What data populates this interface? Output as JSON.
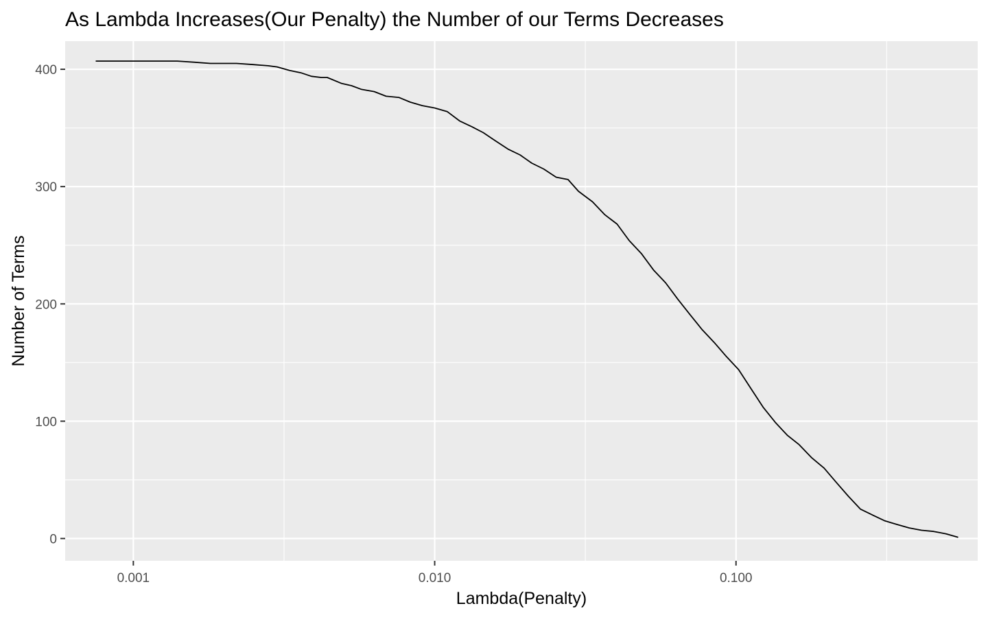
{
  "chart_data": {
    "type": "line",
    "title": "As Lambda Increases(Our Penalty) the Number of our Terms Decreases",
    "xlabel": "Lambda(Penalty)",
    "ylabel": "Number of Terms",
    "x_scale": "log10",
    "xlim": [
      0.000594,
      0.634
    ],
    "ylim": [
      -19,
      424
    ],
    "x_ticks": [
      0.001,
      0.01,
      0.1
    ],
    "x_tick_labels": [
      "0.001",
      "0.010",
      "0.100"
    ],
    "y_ticks": [
      0,
      100,
      200,
      300,
      400
    ],
    "y_tick_labels": [
      "0",
      "100",
      "200",
      "300",
      "400"
    ],
    "grid": true,
    "panel_background": "#ebebeb",
    "line_color": "#000000",
    "series": [
      {
        "x": [
          0.00075,
          0.0008,
          0.001,
          0.0012,
          0.0014,
          0.0016,
          0.0018,
          0.0022,
          0.0025,
          0.0028,
          0.003,
          0.0033,
          0.0036,
          0.0039,
          0.0042,
          0.0044,
          0.0049,
          0.0053,
          0.0057,
          0.0063,
          0.0069,
          0.0076,
          0.0083,
          0.0091,
          0.01,
          0.011,
          0.0121,
          0.0133,
          0.0145,
          0.0159,
          0.0175,
          0.0192,
          0.021,
          0.023,
          0.0253,
          0.0277,
          0.03,
          0.0334,
          0.0367,
          0.0403,
          0.0442,
          0.0485,
          0.0532,
          0.0584,
          0.0641,
          0.0703,
          0.0772,
          0.0847,
          0.093,
          0.102,
          0.112,
          0.123,
          0.135,
          0.148,
          0.162,
          0.178,
          0.196,
          0.215,
          0.236,
          0.259,
          0.284,
          0.312,
          0.342,
          0.376,
          0.413,
          0.453,
          0.497,
          0.546
        ],
        "y": [
          407,
          407,
          407,
          407,
          407,
          406,
          405,
          405,
          404,
          403,
          402,
          399,
          397,
          394,
          393,
          393,
          388,
          386,
          383,
          381,
          377,
          376,
          372,
          369,
          367,
          364,
          356,
          351,
          346,
          339,
          332,
          327,
          320,
          315,
          308,
          306,
          296,
          287,
          276,
          268,
          254,
          243,
          229,
          218,
          204,
          191,
          178,
          167,
          155,
          144,
          128,
          112,
          99,
          88,
          80,
          69,
          60,
          48,
          36,
          25,
          20,
          15,
          12,
          9,
          7,
          6,
          4,
          1
        ]
      }
    ]
  }
}
